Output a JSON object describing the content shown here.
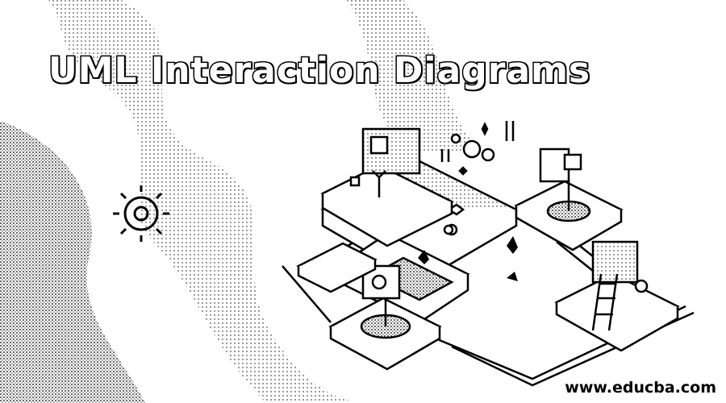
{
  "title": "UML Interaction Diagrams",
  "website": "www.educba.com",
  "colors": {
    "background": "#ffffff",
    "ink": "#000000"
  },
  "illustration": {
    "subject": "isometric-network-platforms-illustration"
  }
}
